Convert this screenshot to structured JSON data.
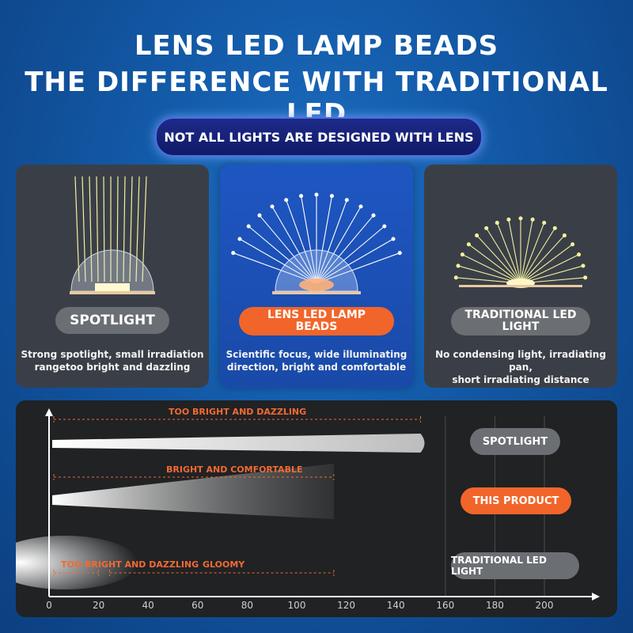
{
  "header": {
    "title_line1": "LENS LED LAMP BEADS",
    "title_line2": "THE DIFFERENCE WITH TRADITIONAL LED",
    "subtitle_pill": "NOT ALL LIGHTS ARE DESIGNED WITH LENS"
  },
  "cards": [
    {
      "badge": "SPOTLIGHT",
      "desc_line1": "Strong spotlight, small irradiation",
      "desc_line2": "rangetoo bright and dazzling"
    },
    {
      "badge_line1": "LENS LED LAMP",
      "badge_line2": "BEADS",
      "desc_line1": "Scientific focus, wide illuminating",
      "desc_line2": "direction, bright and comfortable"
    },
    {
      "badge_line1": "TRADITIONAL LED",
      "badge_line2": "LIGHT",
      "desc_line1": "No condensing light, irradiating pan,",
      "desc_line2": "short irradiating distance"
    }
  ],
  "comparison": {
    "labels": {
      "spot": "TOO BRIGHT AND DAZZLING",
      "lens": "BRIGHT AND COMFORTABLE",
      "trad_a": "TOO BRIGHT AND DAZZLING",
      "trad_b": "GLOOMY"
    },
    "legend": {
      "spotlight": "SPOTLIGHT",
      "this_product": "THIS PRODUCT",
      "traditional": "TRADITIONAL LED LIGHT"
    },
    "axis_ticks": [
      "0",
      "20",
      "40",
      "60",
      "80",
      "100",
      "120",
      "140",
      "160",
      "180",
      "200"
    ],
    "beam_reach": {
      "spotlight": 150,
      "this_product": 115,
      "traditional_bright": 20,
      "traditional_gloomy": 115
    },
    "colors": {
      "accent_orange": "#f2652a",
      "grey_badge": "#6b6e73"
    }
  }
}
